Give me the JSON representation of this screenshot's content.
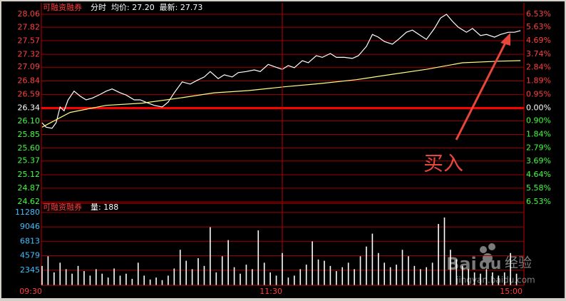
{
  "chart_data": [
    {
      "type": "line",
      "title": "可融资融券",
      "subtitle": "分时  均价: 27.20  最新: 27.73",
      "xlim": [
        0,
        240
      ],
      "ylim": [
        24.62,
        28.06
      ],
      "yticks": [
        28.06,
        27.82,
        27.57,
        27.32,
        27.09,
        26.84,
        26.59,
        26.34,
        {
          "value": 26.1,
          "label": "26.10"
        },
        25.85,
        {
          "value": 25.6,
          "label": "25.60"
        },
        25.37,
        25.12,
        24.87,
        24.62
      ],
      "y2lim": [
        -6.53,
        6.53
      ],
      "y2ticks": [
        {
          "value": 6.53,
          "label": "6.53%"
        },
        {
          "value": 5.63,
          "label": "5.63%"
        },
        {
          "value": 4.69,
          "label": "4.69%"
        },
        {
          "value": 3.74,
          "label": "3.74%"
        },
        {
          "value": 2.84,
          "label": "2.84%"
        },
        {
          "value": 1.89,
          "label": "1.89%"
        },
        {
          "value": 0.95,
          "label": "0.95%"
        },
        {
          "value": 0,
          "label": "0.00%"
        },
        {
          "value": -0.9,
          "label": "0.90%"
        },
        {
          "value": -1.84,
          "label": "1.84%"
        },
        {
          "value": -2.79,
          "label": "2.79%"
        },
        {
          "value": -3.69,
          "label": "3.69%"
        },
        {
          "value": -4.64,
          "label": "4.64%"
        },
        {
          "value": -5.58,
          "label": "5.58%"
        },
        {
          "value": -6.53,
          "label": "6.53%"
        }
      ],
      "grid": true,
      "series": [
        {
          "color": "#ffffff",
          "x": [
            0,
            2,
            5,
            7,
            9,
            11,
            13,
            16,
            19,
            22,
            25,
            29,
            32,
            35,
            39,
            42,
            46,
            49,
            53,
            56,
            60,
            63,
            66,
            70,
            74,
            77,
            81,
            84,
            88,
            91,
            95,
            98,
            102,
            106,
            109,
            113,
            116,
            120,
            123,
            126,
            130,
            133,
            137,
            140,
            144,
            147,
            151,
            155,
            158,
            162,
            165,
            168,
            171,
            175,
            178,
            182,
            185,
            189,
            192,
            196,
            199,
            202,
            205,
            208,
            212,
            215,
            219,
            222,
            226,
            229,
            233,
            236,
            239
          ],
          "values": [
            26.07,
            25.99,
            25.97,
            26.07,
            26.36,
            26.29,
            26.49,
            26.65,
            26.56,
            26.49,
            26.52,
            26.59,
            26.65,
            26.69,
            26.62,
            26.58,
            26.49,
            26.49,
            26.43,
            26.39,
            26.36,
            26.45,
            26.62,
            26.82,
            26.78,
            26.84,
            26.91,
            27.01,
            26.88,
            26.95,
            26.91,
            26.99,
            27.01,
            27.04,
            27.01,
            27.14,
            27.1,
            27.05,
            27.12,
            27.08,
            27.21,
            27.17,
            27.3,
            27.27,
            27.34,
            27.27,
            27.27,
            27.25,
            27.3,
            27.47,
            27.69,
            27.64,
            27.56,
            27.51,
            27.6,
            27.73,
            27.77,
            27.67,
            27.6,
            27.8,
            27.99,
            28.06,
            27.93,
            27.82,
            27.73,
            27.8,
            27.67,
            27.69,
            27.64,
            27.69,
            27.73,
            27.73,
            27.76
          ]
        },
        {
          "color": "#ffff80",
          "x": [
            0,
            14,
            32,
            50,
            68,
            86,
            103,
            121,
            139,
            157,
            175,
            192,
            210,
            228,
            239
          ],
          "values": [
            25.99,
            26.26,
            26.39,
            26.43,
            26.52,
            26.62,
            26.66,
            26.73,
            26.79,
            26.86,
            26.96,
            27.05,
            27.17,
            27.2,
            27.21
          ]
        }
      ],
      "annotation": "买入"
    },
    {
      "type": "bar",
      "title": "可融资融券",
      "subtitle": "量: 188",
      "xlim": [
        0,
        240
      ],
      "ylim": [
        0,
        12700
      ],
      "xticks": [
        {
          "value": 0,
          "label": "09:30"
        },
        {
          "value": 120,
          "label": "11:30"
        },
        {
          "value": 240,
          "label": "15:00"
        }
      ],
      "yticks": [
        11280,
        9046,
        6813,
        4579,
        2345
      ],
      "grid": true,
      "color": "#ffffff",
      "x": [
        0,
        3,
        6,
        9,
        12,
        15,
        18,
        21,
        24,
        27,
        30,
        33,
        36,
        39,
        42,
        45,
        48,
        51,
        54,
        57,
        60,
        63,
        66,
        69,
        72,
        75,
        78,
        81,
        84,
        87,
        90,
        93,
        96,
        99,
        102,
        105,
        108,
        111,
        114,
        117,
        120,
        123,
        126,
        129,
        132,
        135,
        138,
        141,
        144,
        147,
        150,
        153,
        156,
        159,
        162,
        165,
        168,
        171,
        174,
        177,
        180,
        183,
        186,
        189,
        192,
        195,
        198,
        201,
        204,
        207,
        210,
        213,
        216,
        219,
        222,
        225,
        228,
        231,
        234,
        237
      ],
      "values": [
        3000,
        4500,
        2000,
        3500,
        2500,
        1800,
        3000,
        2200,
        1500,
        2500,
        1800,
        1200,
        2600,
        1500,
        1800,
        1000,
        3500,
        1500,
        900,
        1200,
        800,
        1500,
        2600,
        5500,
        3800,
        2500,
        4200,
        3000,
        9000,
        2000,
        4500,
        7000,
        2800,
        1800,
        3200,
        2500,
        8500,
        3500,
        2000,
        1500,
        5000,
        1200,
        1500,
        2500,
        3200,
        6800,
        4000,
        3800,
        3000,
        2200,
        2800,
        3500,
        2500,
        4500,
        6000,
        8000,
        5000,
        3500,
        2800,
        3200,
        5500,
        4500,
        3000,
        2500,
        2800,
        3500,
        9500,
        10500,
        5500,
        4000,
        3000,
        2500,
        2000,
        1800,
        2500,
        2000,
        1500,
        2000,
        5000,
        1800
      ]
    }
  ],
  "watermark": [
    "Bai",
    "du",
    "经验",
    "jingyan.baidu.com"
  ]
}
